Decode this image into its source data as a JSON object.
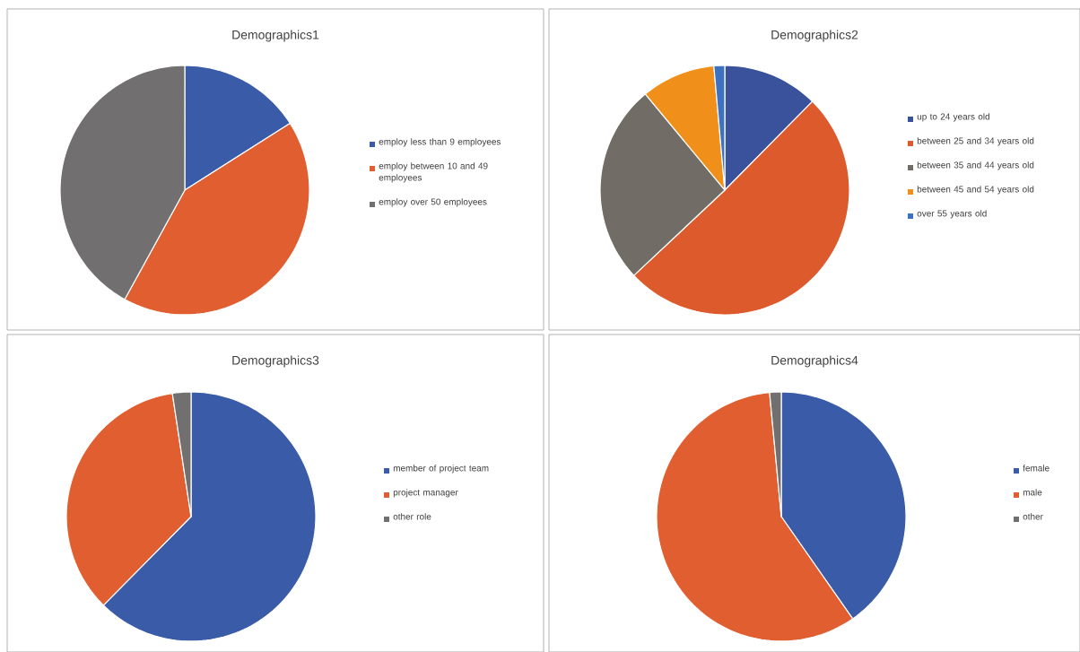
{
  "chart_data": [
    {
      "type": "pie",
      "title": "Demographics1",
      "legend": "right",
      "categories": [
        "employ less than 9 employees",
        "employ between 10 and 49 employees",
        "employ over 50 employees"
      ],
      "values": [
        16,
        42,
        42
      ],
      "colors": [
        "#3a5ba8",
        "#e05e30",
        "#716f6f"
      ]
    },
    {
      "type": "pie",
      "title": "Demographics2",
      "legend": "right",
      "categories": [
        "up to 24 years old",
        "between 25 and 34 years old",
        "between 35 and 44 years old",
        "between 45 and 54 years old",
        "over 55 years old"
      ],
      "values": [
        12.4,
        50.6,
        26,
        9.6,
        1.4
      ],
      "colors": [
        "#3a519c",
        "#dc5a2c",
        "#716d66",
        "#f0901a",
        "#3d72c0"
      ]
    },
    {
      "type": "pie",
      "title": "Demographics3",
      "legend": "right",
      "categories": [
        "member of project team",
        "project manager",
        "other role"
      ],
      "values": [
        62.4,
        35.2,
        2.4
      ],
      "colors": [
        "#3a5ba8",
        "#e05e30",
        "#716f6f"
      ]
    },
    {
      "type": "pie",
      "title": "Demographics4",
      "legend": "right",
      "categories": [
        "female",
        "male",
        "other"
      ],
      "values": [
        40.3,
        58.2,
        1.5
      ],
      "colors": [
        "#3a5ba8",
        "#e05e30",
        "#716f6f"
      ]
    }
  ]
}
